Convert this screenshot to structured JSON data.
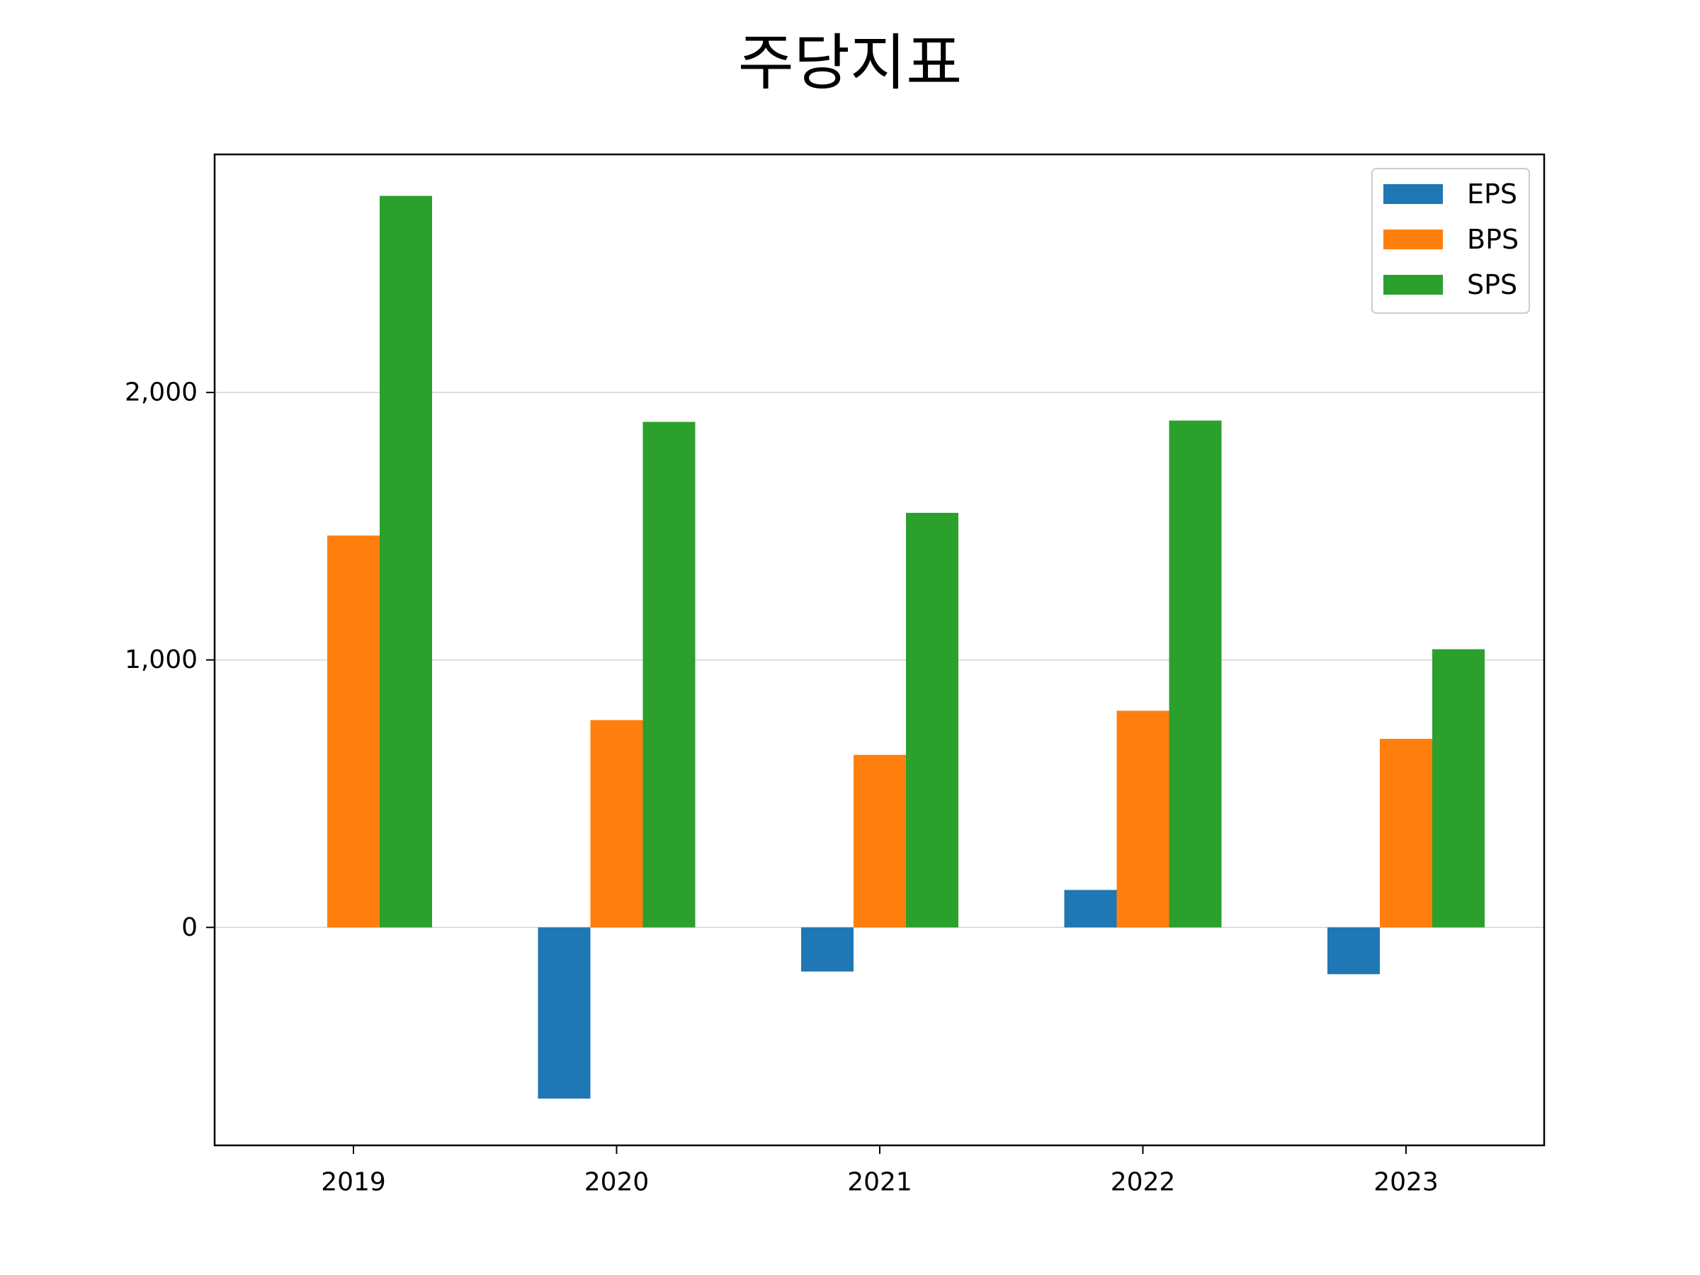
{
  "chart_data": {
    "type": "bar",
    "title": "주당지표",
    "xlabel": "",
    "ylabel": "",
    "categories": [
      "2019",
      "2020",
      "2021",
      "2022",
      "2023"
    ],
    "series": [
      {
        "name": "EPS",
        "color": "#1f77b4",
        "values": [
          0,
          -640,
          -165,
          140,
          -175
        ]
      },
      {
        "name": "BPS",
        "color": "#ff7f0e",
        "values": [
          1465,
          775,
          645,
          810,
          705
        ]
      },
      {
        "name": "SPS",
        "color": "#2ca02c",
        "values": [
          2735,
          1890,
          1550,
          1895,
          1040
        ]
      }
    ],
    "yticks": [
      0,
      1000,
      2000
    ],
    "ytick_labels": [
      "0",
      "1,000",
      "2,000"
    ],
    "ylim": [
      -815,
      2890
    ],
    "grid": "y",
    "legend": "top-right"
  }
}
